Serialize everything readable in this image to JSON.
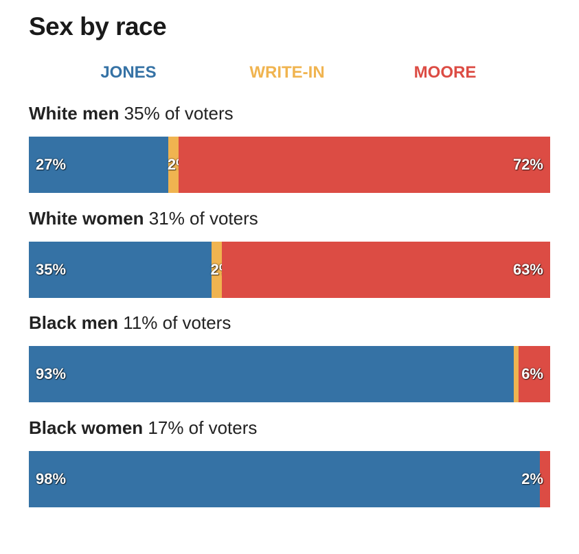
{
  "chart_data": {
    "type": "bar",
    "title": "Sex by race",
    "stacked": true,
    "orientation": "horizontal",
    "xlim": [
      0,
      100
    ],
    "legend_position": "top",
    "series_names": [
      "JONES",
      "WRITE-IN",
      "MOORE"
    ],
    "colors": {
      "JONES": "#3572a5",
      "WRITE-IN": "#f0b450",
      "MOORE": "#dc4c44"
    },
    "rows": [
      {
        "name": "White men",
        "share": "35% of voters",
        "segments": [
          {
            "series": "JONES",
            "value": 27,
            "label": "27%"
          },
          {
            "series": "WRITE-IN",
            "value": 2,
            "label": "2%"
          },
          {
            "series": "MOORE",
            "value": 72,
            "label": "72%"
          }
        ]
      },
      {
        "name": "White women",
        "share": "31% of voters",
        "segments": [
          {
            "series": "JONES",
            "value": 35,
            "label": "35%"
          },
          {
            "series": "WRITE-IN",
            "value": 2,
            "label": "2%"
          },
          {
            "series": "MOORE",
            "value": 63,
            "label": "63%"
          }
        ]
      },
      {
        "name": "Black men",
        "share": "11% of voters",
        "segments": [
          {
            "series": "JONES",
            "value": 93,
            "label": "93%"
          },
          {
            "series": "WRITE-IN",
            "value": 1,
            "label": ""
          },
          {
            "series": "MOORE",
            "value": 6,
            "label": "6%"
          }
        ]
      },
      {
        "name": "Black women",
        "share": "17% of voters",
        "segments": [
          {
            "series": "JONES",
            "value": 98,
            "label": "98%"
          },
          {
            "series": "MOORE",
            "value": 2,
            "label": "2%"
          }
        ]
      }
    ]
  }
}
